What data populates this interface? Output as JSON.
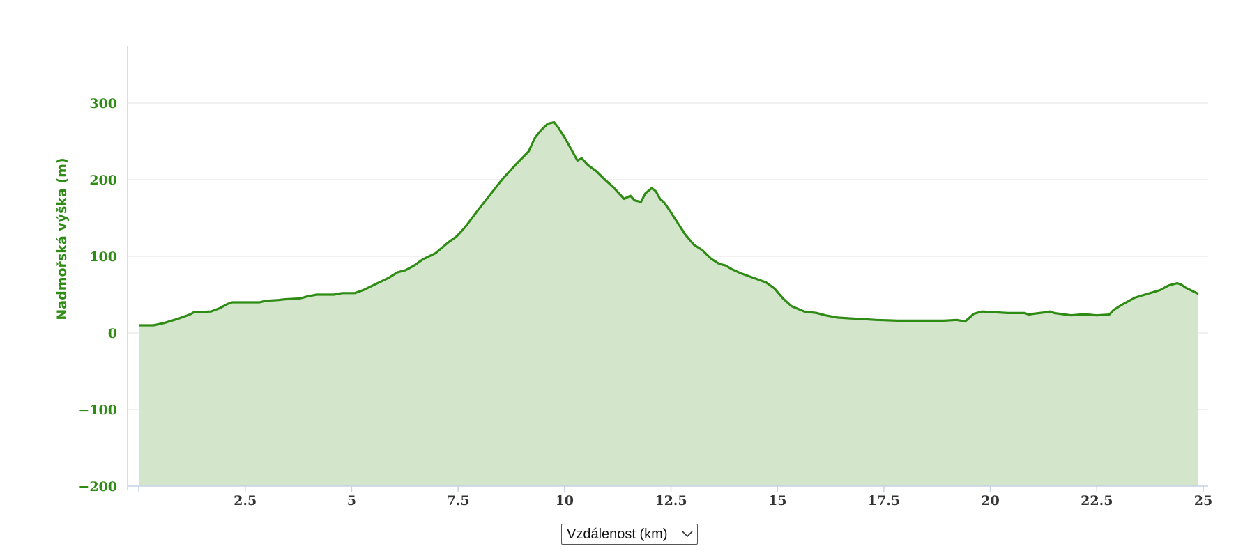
{
  "chart_data": {
    "type": "area",
    "title": "",
    "xlabel": "",
    "ylabel": "Nadmořská výška (m)",
    "xlim": [
      0,
      25
    ],
    "ylim": [
      -200,
      380
    ],
    "grid": true,
    "x_ticks": [
      2.5,
      5,
      7.5,
      10,
      12.5,
      15,
      17.5,
      20,
      22.5,
      25
    ],
    "x_tick_labels": [
      "2.5",
      "5",
      "7.5",
      "10",
      "12.5",
      "15",
      "17.5",
      "20",
      "22.5",
      "25"
    ],
    "y_ticks": [
      -200,
      -100,
      0,
      100,
      200,
      300
    ],
    "y_tick_labels": [
      "−200",
      "−100",
      "0",
      "100",
      "200",
      "300"
    ],
    "colors": {
      "line": "#2e8b14",
      "fill": "#d3e6cb",
      "grid": "#e6e6e6",
      "axis": "#c6d2e4"
    },
    "series": [
      {
        "x": [
          0.0,
          0.35,
          0.6,
          0.9,
          1.2,
          1.3,
          1.7,
          1.9,
          2.1,
          2.2,
          2.5,
          2.85,
          3.0,
          3.3,
          3.45,
          3.8,
          4.0,
          4.2,
          4.6,
          4.8,
          5.1,
          5.3,
          5.6,
          5.9,
          6.1,
          6.3,
          6.5,
          6.7,
          7.0,
          7.3,
          7.5,
          7.7,
          8.0,
          8.3,
          8.6,
          8.9,
          9.2,
          9.35,
          9.5,
          9.65,
          9.8,
          9.9,
          10.05,
          10.2,
          10.35,
          10.45,
          10.6,
          10.8,
          11.0,
          11.2,
          11.45,
          11.6,
          11.7,
          11.85,
          11.95,
          12.1,
          12.2,
          12.3,
          12.4,
          12.55,
          12.7,
          12.9,
          13.1,
          13.3,
          13.5,
          13.7,
          13.85,
          14.0,
          14.2,
          14.4,
          14.6,
          14.8,
          15.0,
          15.2,
          15.4,
          15.7,
          16.0,
          16.2,
          16.5,
          16.8,
          17.1,
          17.4,
          17.9,
          18.5,
          19.0,
          19.3,
          19.5,
          19.7,
          19.9,
          20.5,
          20.9,
          21.0,
          21.1,
          21.4,
          21.5,
          21.6,
          22.0,
          22.2,
          22.4,
          22.6,
          22.9,
          23.0,
          23.2,
          23.5,
          23.8,
          24.1,
          24.3,
          24.5,
          24.6,
          24.7,
          25.0
        ],
        "y": [
          10,
          10,
          13,
          18,
          24,
          27,
          28,
          32,
          38,
          40,
          40,
          40,
          42,
          43,
          44,
          45,
          48,
          50,
          50,
          52,
          52,
          56,
          64,
          72,
          79,
          82,
          88,
          96,
          104,
          118,
          126,
          138,
          160,
          181,
          202,
          220,
          237,
          255,
          265,
          273,
          275,
          268,
          255,
          240,
          225,
          228,
          219,
          211,
          200,
          190,
          175,
          179,
          173,
          171,
          182,
          189,
          185,
          175,
          170,
          158,
          145,
          128,
          115,
          108,
          97,
          90,
          88,
          83,
          78,
          74,
          70,
          66,
          58,
          45,
          35,
          28,
          26,
          23,
          20,
          19,
          18,
          17,
          16,
          16,
          16,
          17,
          15,
          25,
          28,
          26,
          26,
          24,
          25,
          27,
          28,
          26,
          23,
          24,
          24,
          23,
          24,
          30,
          37,
          46,
          51,
          56,
          62,
          65,
          63,
          59,
          51
        ]
      }
    ]
  },
  "controls": {
    "xaxis_select_value": "Vzdálenost (km)",
    "xaxis_select_icon": "chevron-down-icon"
  }
}
